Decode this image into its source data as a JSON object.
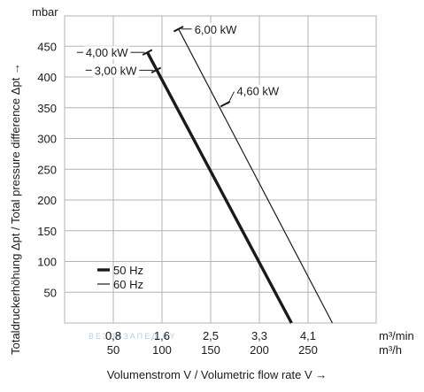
{
  "chart_data": {
    "type": "line",
    "y_unit": "mbar",
    "ylabel": "Totaldruckerhöhung Δpt / Total pressure difference Δpt →",
    "xlabel": "Volumenstrom V / Volumetric flow rate V →",
    "x_unit_top": "m³/min",
    "x_unit_bottom": "m³/h",
    "ylim": [
      0,
      500
    ],
    "xlim_m3h": [
      0,
      320
    ],
    "grid": true,
    "yticks": [
      50,
      100,
      150,
      200,
      250,
      300,
      350,
      400,
      450
    ],
    "xticks_m3h": [
      50,
      100,
      150,
      200,
      250
    ],
    "xticks_m3min": [
      "0,8",
      "1,6",
      "2,5",
      "3,3",
      "4,1"
    ],
    "series": [
      {
        "name": "50 Hz",
        "points": [
          [
            85,
            440
          ],
          [
            233,
            0
          ]
        ]
      },
      {
        "name": "60 Hz",
        "points": [
          [
            117,
            478
          ],
          [
            275,
            0
          ]
        ]
      }
    ],
    "annotations": [
      {
        "text": "4,00 kW",
        "series": "50 Hz",
        "at": [
          85,
          440
        ]
      },
      {
        "text": "3,00 kW",
        "series": "50 Hz",
        "at": [
          94,
          411
        ]
      },
      {
        "text": "6,00 kW",
        "series": "60 Hz",
        "at": [
          117,
          478
        ]
      },
      {
        "text": "4,60 kW",
        "series": "60 Hz",
        "at": [
          165,
          356
        ]
      }
    ],
    "legend": {
      "placement": "bottom-left",
      "entries": [
        {
          "series": "50 Hz",
          "style": "thick"
        },
        {
          "series": "60 Hz",
          "style": "thin"
        }
      ]
    },
    "watermark": "ВЕЗЭЛЗАПЕД.BY"
  }
}
